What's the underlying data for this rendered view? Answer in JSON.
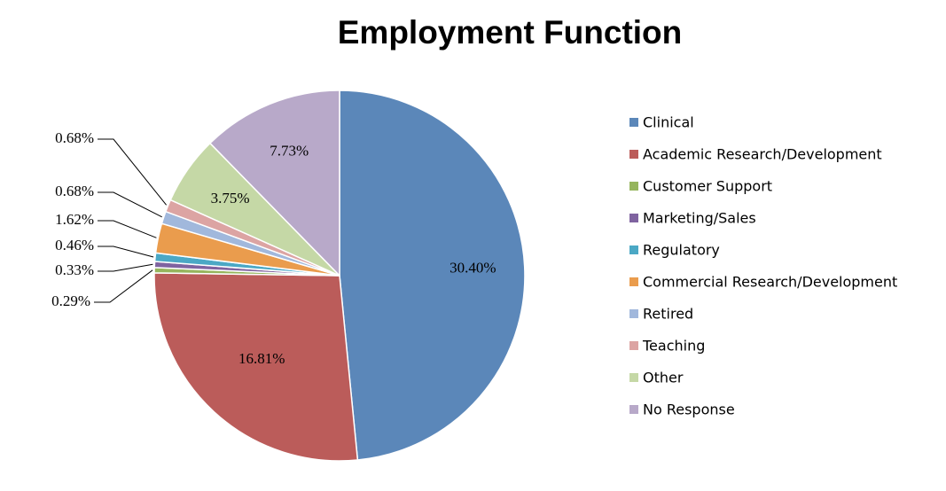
{
  "chart_data": {
    "type": "pie",
    "title": "Employment Function",
    "legend_position": "right",
    "categories": [
      "Clinical",
      "Academic Research/Development",
      "Customer Support",
      "Marketing/Sales",
      "Regulatory",
      "Commercial Research/Development",
      "Retired",
      "Teaching",
      "Other",
      "No Response"
    ],
    "values": [
      30.4,
      16.81,
      0.29,
      0.33,
      0.46,
      1.62,
      0.68,
      0.68,
      3.75,
      7.73
    ],
    "labels": [
      "30.40%",
      "16.81%",
      "0.29%",
      "0.33%",
      "0.46%",
      "1.62%",
      "0.68%",
      "0.68%",
      "3.75%",
      "7.73%"
    ],
    "colors": [
      "#5b87b9",
      "#bb5c5a",
      "#96b55d",
      "#7f63a0",
      "#4ba8c5",
      "#ea9c4d",
      "#a1b8dc",
      "#dca4a3",
      "#c5d8a6",
      "#b8a9c9"
    ]
  }
}
